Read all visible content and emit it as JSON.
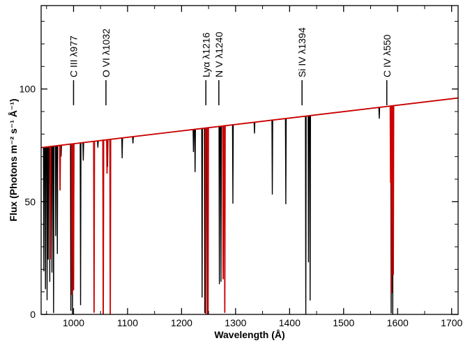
{
  "chart_data": {
    "type": "line",
    "title": "",
    "xlabel": "Wavelength (Å)",
    "ylabel": "Flux (Photons m⁻² s⁻¹ Å⁻¹)",
    "xlim": [
      940,
      1712
    ],
    "ylim": [
      0,
      137
    ],
    "grid": false,
    "x_ticks": [
      {
        "value": 1000,
        "label": "1000"
      },
      {
        "value": 1100,
        "label": "1100"
      },
      {
        "value": 1200,
        "label": "1200"
      },
      {
        "value": 1300,
        "label": "1300"
      },
      {
        "value": 1400,
        "label": "1400"
      },
      {
        "value": 1500,
        "label": "1500"
      },
      {
        "value": 1600,
        "label": "1600"
      },
      {
        "value": 1700,
        "label": "1700"
      }
    ],
    "y_ticks": [
      {
        "value": 0,
        "label": "0"
      },
      {
        "value": 50,
        "label": "50"
      },
      {
        "value": 100,
        "label": "100"
      }
    ],
    "continuum": {
      "x": [
        940,
        1712
      ],
      "y": [
        74,
        96
      ]
    },
    "series": [
      {
        "color": "#000000",
        "absorption_lines": [
          {
            "x": 945,
            "depth": 55
          },
          {
            "x": 948,
            "depth": 63
          },
          {
            "x": 951,
            "depth": 68
          },
          {
            "x": 953,
            "depth": 50
          },
          {
            "x": 956,
            "depth": 60
          },
          {
            "x": 960,
            "depth": 56
          },
          {
            "x": 963,
            "depth": 74
          },
          {
            "x": 967,
            "depth": 40
          },
          {
            "x": 970,
            "depth": 48
          },
          {
            "x": 977,
            "depth": 5
          },
          {
            "x": 995,
            "depth": 74
          },
          {
            "x": 998,
            "depth": 76
          },
          {
            "x": 1000,
            "depth": 60
          },
          {
            "x": 1013,
            "depth": 72
          },
          {
            "x": 1018,
            "depth": 8
          },
          {
            "x": 1045,
            "depth": 3
          },
          {
            "x": 1055,
            "depth": 78
          },
          {
            "x": 1063,
            "depth": 12
          },
          {
            "x": 1068,
            "depth": 50
          },
          {
            "x": 1090,
            "depth": 9
          },
          {
            "x": 1110,
            "depth": 3
          },
          {
            "x": 1222,
            "depth": 10
          },
          {
            "x": 1225,
            "depth": 19
          },
          {
            "x": 1238,
            "depth": 75
          },
          {
            "x": 1243,
            "depth": 82
          },
          {
            "x": 1248,
            "depth": 83
          },
          {
            "x": 1270,
            "depth": 70
          },
          {
            "x": 1273,
            "depth": 69
          },
          {
            "x": 1295,
            "depth": 35
          },
          {
            "x": 1335,
            "depth": 5
          },
          {
            "x": 1368,
            "depth": 33
          },
          {
            "x": 1393,
            "depth": 38
          },
          {
            "x": 1430,
            "depth": 88
          },
          {
            "x": 1435,
            "depth": 65
          },
          {
            "x": 1438,
            "depth": 82
          },
          {
            "x": 1566,
            "depth": 5
          },
          {
            "x": 1588,
            "depth": 92
          },
          {
            "x": 1591,
            "depth": 93
          }
        ]
      },
      {
        "color": "#cc0000",
        "absorption_lines": [
          {
            "x": 957,
            "depth": 50
          },
          {
            "x": 975,
            "depth": 20
          },
          {
            "x": 997,
            "depth": 67
          },
          {
            "x": 1000,
            "depth": 65
          },
          {
            "x": 1038,
            "depth": 76
          },
          {
            "x": 1055,
            "depth": 79
          },
          {
            "x": 1062,
            "depth": 15
          },
          {
            "x": 1068,
            "depth": 79
          },
          {
            "x": 1245,
            "depth": 84
          },
          {
            "x": 1249,
            "depth": 84
          },
          {
            "x": 1277,
            "depth": 68
          },
          {
            "x": 1280,
            "depth": 83
          },
          {
            "x": 1587,
            "depth": 34
          },
          {
            "x": 1589,
            "depth": 83
          },
          {
            "x": 1592,
            "depth": 75
          }
        ]
      }
    ],
    "annotations": [
      {
        "x": 1000,
        "label": "C III λ977"
      },
      {
        "x": 1060,
        "label": "O VI λ1032"
      },
      {
        "x": 1245,
        "label": "Lyα λ1216"
      },
      {
        "x": 1269,
        "label": "N V λ1240"
      },
      {
        "x": 1423,
        "label": "Si IV λ1394"
      },
      {
        "x": 1580,
        "label": "C IV λ550"
      }
    ]
  }
}
